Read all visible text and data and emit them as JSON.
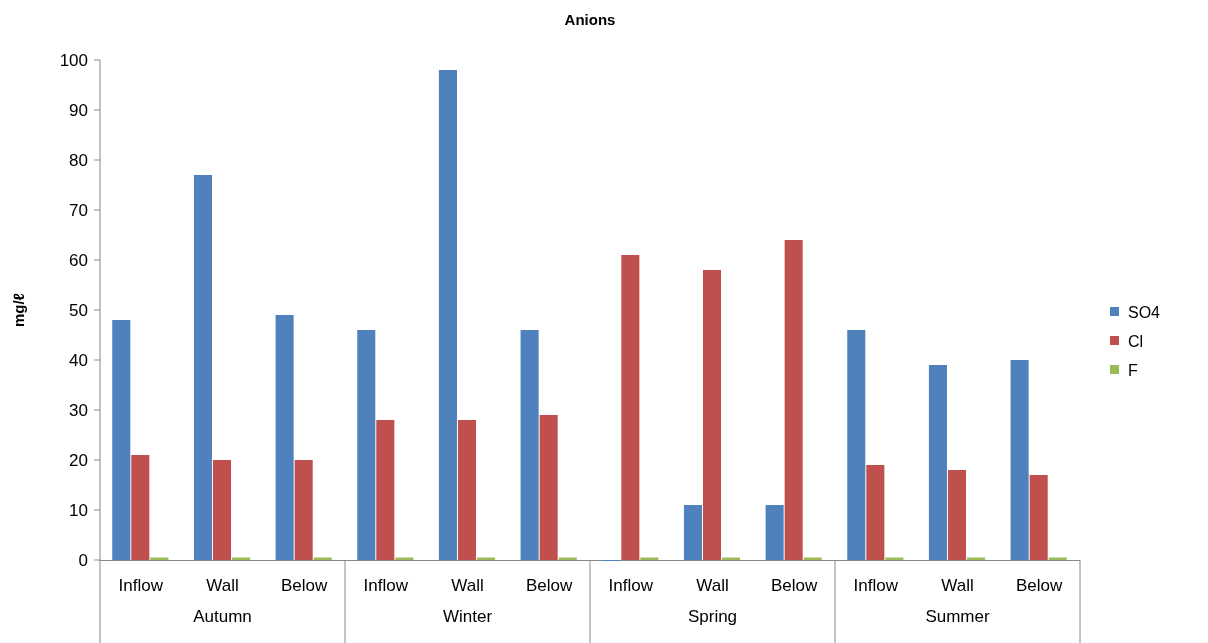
{
  "chart_data": {
    "type": "bar",
    "title": "Anions",
    "ylabel": "mg/ℓ",
    "categories": [
      "Inflow",
      "Wall",
      "Below",
      "Inflow",
      "Wall",
      "Below",
      "Inflow",
      "Wall",
      "Below",
      "Inflow",
      "Wall",
      "Below"
    ],
    "annotations": [
      "Autumn",
      "Winter",
      "Spring",
      "Summer"
    ],
    "series": [
      {
        "name": "SO4",
        "color": "#4f81bd",
        "values": [
          48,
          77,
          49,
          46,
          98,
          46,
          0,
          11,
          11,
          46,
          39,
          40
        ]
      },
      {
        "name": "Cl",
        "color": "#c0504d",
        "values": [
          21,
          20,
          20,
          28,
          28,
          29,
          61,
          58,
          64,
          19,
          18,
          17
        ]
      },
      {
        "name": "F",
        "color": "#9bbb59",
        "values": [
          0.5,
          0.5,
          0.5,
          0.5,
          0.5,
          0.5,
          0.5,
          0.5,
          0.5,
          0.5,
          0.5,
          0.5
        ]
      }
    ],
    "ylim": [
      0,
      100
    ],
    "yticks": [
      0,
      10,
      20,
      30,
      40,
      50,
      60,
      70,
      80,
      90,
      100
    ],
    "grid": false,
    "legend": "right"
  }
}
